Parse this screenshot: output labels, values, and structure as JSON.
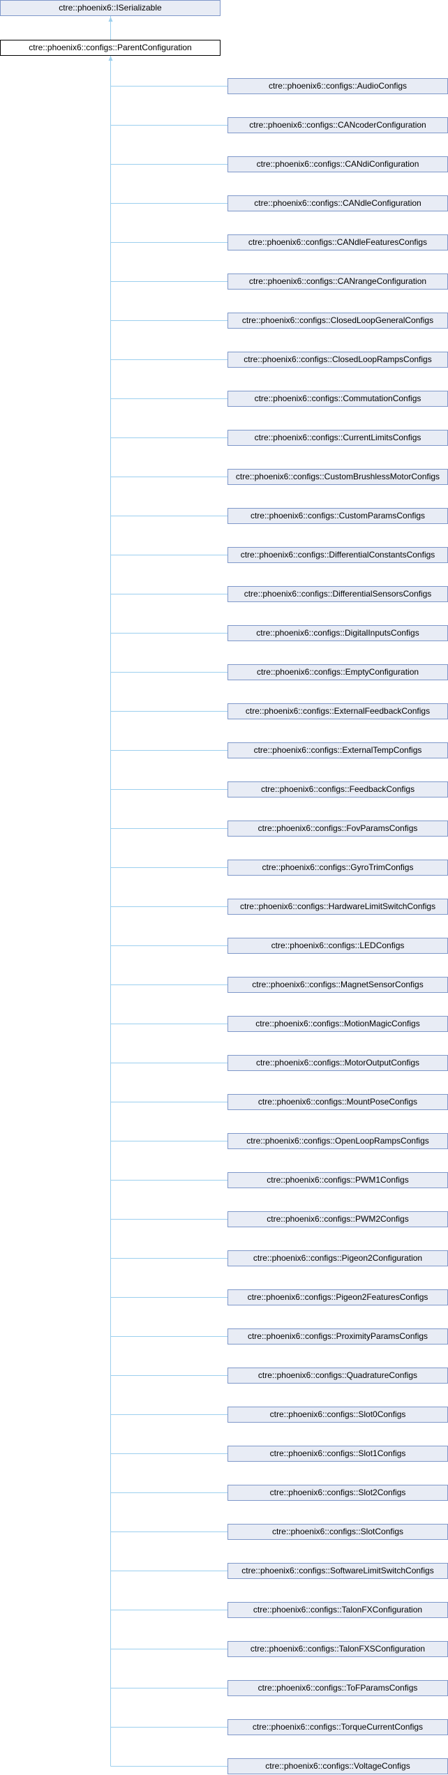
{
  "base": {
    "label": "ctre::phoenix6::ISerializable"
  },
  "current": {
    "label": "ctre::phoenix6::configs::ParentConfiguration"
  },
  "children": [
    "ctre::phoenix6::configs::AudioConfigs",
    "ctre::phoenix6::configs::CANcoderConfiguration",
    "ctre::phoenix6::configs::CANdiConfiguration",
    "ctre::phoenix6::configs::CANdleConfiguration",
    "ctre::phoenix6::configs::CANdleFeaturesConfigs",
    "ctre::phoenix6::configs::CANrangeConfiguration",
    "ctre::phoenix6::configs::ClosedLoopGeneralConfigs",
    "ctre::phoenix6::configs::ClosedLoopRampsConfigs",
    "ctre::phoenix6::configs::CommutationConfigs",
    "ctre::phoenix6::configs::CurrentLimitsConfigs",
    "ctre::phoenix6::configs::CustomBrushlessMotorConfigs",
    "ctre::phoenix6::configs::CustomParamsConfigs",
    "ctre::phoenix6::configs::DifferentialConstantsConfigs",
    "ctre::phoenix6::configs::DifferentialSensorsConfigs",
    "ctre::phoenix6::configs::DigitalInputsConfigs",
    "ctre::phoenix6::configs::EmptyConfiguration",
    "ctre::phoenix6::configs::ExternalFeedbackConfigs",
    "ctre::phoenix6::configs::ExternalTempConfigs",
    "ctre::phoenix6::configs::FeedbackConfigs",
    "ctre::phoenix6::configs::FovParamsConfigs",
    "ctre::phoenix6::configs::GyroTrimConfigs",
    "ctre::phoenix6::configs::HardwareLimitSwitchConfigs",
    "ctre::phoenix6::configs::LEDConfigs",
    "ctre::phoenix6::configs::MagnetSensorConfigs",
    "ctre::phoenix6::configs::MotionMagicConfigs",
    "ctre::phoenix6::configs::MotorOutputConfigs",
    "ctre::phoenix6::configs::MountPoseConfigs",
    "ctre::phoenix6::configs::OpenLoopRampsConfigs",
    "ctre::phoenix6::configs::PWM1Configs",
    "ctre::phoenix6::configs::PWM2Configs",
    "ctre::phoenix6::configs::Pigeon2Configuration",
    "ctre::phoenix6::configs::Pigeon2FeaturesConfigs",
    "ctre::phoenix6::configs::ProximityParamsConfigs",
    "ctre::phoenix6::configs::QuadratureConfigs",
    "ctre::phoenix6::configs::Slot0Configs",
    "ctre::phoenix6::configs::Slot1Configs",
    "ctre::phoenix6::configs::Slot2Configs",
    "ctre::phoenix6::configs::SlotConfigs",
    "ctre::phoenix6::configs::SoftwareLimitSwitchConfigs",
    "ctre::phoenix6::configs::TalonFXConfiguration",
    "ctre::phoenix6::configs::TalonFXSConfiguration",
    "ctre::phoenix6::configs::ToFParamsConfigs",
    "ctre::phoenix6::configs::TorqueCurrentConfigs",
    "ctre::phoenix6::configs::VoltageConfigs"
  ],
  "colors": {
    "node_fill": "#E8ECF5",
    "node_border": "#7E97C9",
    "current_border": "#000000",
    "edge": "#9CCFEE"
  }
}
